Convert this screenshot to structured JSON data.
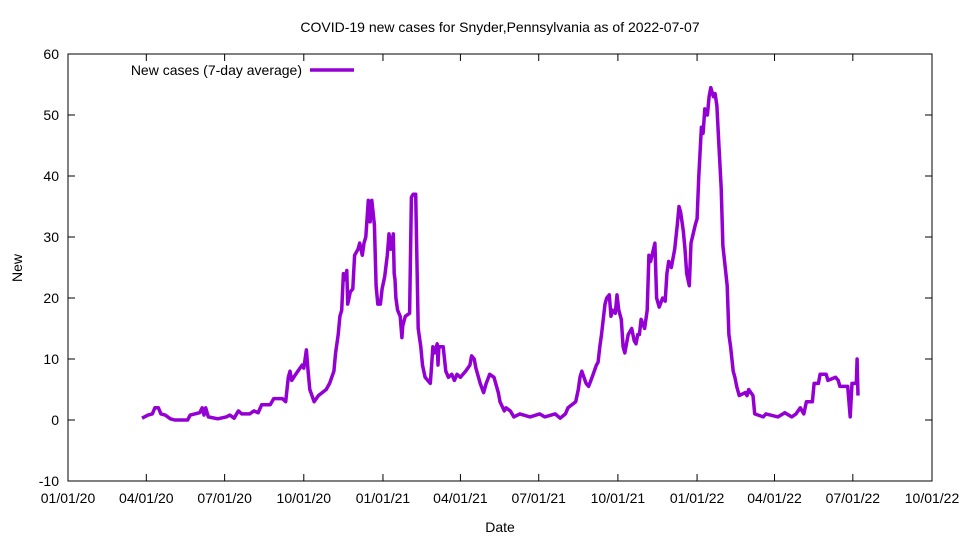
{
  "chart_data": {
    "type": "line",
    "title": "COVID-19 new cases for Snyder,Pennsylvania as of 2022-07-07",
    "xlabel": "Date",
    "ylabel": "New",
    "xlim": [
      "2020-01-01",
      "2022-10-01"
    ],
    "ylim": [
      -10,
      60
    ],
    "yticks": [
      -10,
      0,
      10,
      20,
      30,
      40,
      50,
      60
    ],
    "xticks": [
      {
        "date": "2020-01-01",
        "label": "01/01/20"
      },
      {
        "date": "2020-04-01",
        "label": "04/01/20"
      },
      {
        "date": "2020-07-01",
        "label": "07/01/20"
      },
      {
        "date": "2020-10-01",
        "label": "10/01/20"
      },
      {
        "date": "2021-01-01",
        "label": "01/01/21"
      },
      {
        "date": "2021-04-01",
        "label": "04/01/21"
      },
      {
        "date": "2021-07-01",
        "label": "07/01/21"
      },
      {
        "date": "2021-10-01",
        "label": "10/01/21"
      },
      {
        "date": "2022-01-01",
        "label": "01/01/22"
      },
      {
        "date": "2022-04-01",
        "label": "04/01/22"
      },
      {
        "date": "2022-07-01",
        "label": "07/01/22"
      },
      {
        "date": "2022-10-01",
        "label": "10/01/22"
      }
    ],
    "grid": false,
    "legend_placement": "top-left",
    "series": [
      {
        "name": "New cases (7-day average)",
        "color": "#9400D3",
        "points": [
          [
            "2020-03-27",
            0.3
          ],
          [
            "2020-04-03",
            0.8
          ],
          [
            "2020-04-08",
            1
          ],
          [
            "2020-04-11",
            2
          ],
          [
            "2020-04-15",
            2
          ],
          [
            "2020-04-18",
            1
          ],
          [
            "2020-04-23",
            0.8
          ],
          [
            "2020-04-29",
            0.2
          ],
          [
            "2020-05-04",
            0
          ],
          [
            "2020-05-19",
            0
          ],
          [
            "2020-05-22",
            0.8
          ],
          [
            "2020-06-02",
            1.2
          ],
          [
            "2020-06-05",
            2
          ],
          [
            "2020-06-07",
            0.8
          ],
          [
            "2020-06-09",
            2
          ],
          [
            "2020-06-12",
            0.5
          ],
          [
            "2020-06-23",
            0.2
          ],
          [
            "2020-07-03",
            0.5
          ],
          [
            "2020-07-07",
            0.8
          ],
          [
            "2020-07-12",
            0.3
          ],
          [
            "2020-07-17",
            1.5
          ],
          [
            "2020-07-21",
            1
          ],
          [
            "2020-07-30",
            1
          ],
          [
            "2020-08-04",
            1.5
          ],
          [
            "2020-08-09",
            1.2
          ],
          [
            "2020-08-13",
            2.5
          ],
          [
            "2020-08-23",
            2.5
          ],
          [
            "2020-08-27",
            3.5
          ],
          [
            "2020-09-06",
            3.5
          ],
          [
            "2020-09-10",
            3
          ],
          [
            "2020-09-13",
            7
          ],
          [
            "2020-09-15",
            8
          ],
          [
            "2020-09-17",
            6.5
          ],
          [
            "2020-09-24",
            8
          ],
          [
            "2020-09-29",
            9
          ],
          [
            "2020-10-01",
            8.5
          ],
          [
            "2020-10-04",
            11.5
          ],
          [
            "2020-10-06",
            8
          ],
          [
            "2020-10-08",
            5
          ],
          [
            "2020-10-13",
            3
          ],
          [
            "2020-10-18",
            4
          ],
          [
            "2020-10-27",
            5
          ],
          [
            "2020-10-31",
            6
          ],
          [
            "2020-11-05",
            8
          ],
          [
            "2020-11-07",
            11
          ],
          [
            "2020-11-10",
            14
          ],
          [
            "2020-11-12",
            17
          ],
          [
            "2020-11-14",
            18
          ],
          [
            "2020-11-16",
            24
          ],
          [
            "2020-11-18",
            23
          ],
          [
            "2020-11-20",
            24.5
          ],
          [
            "2020-11-21",
            19
          ],
          [
            "2020-11-24",
            21
          ],
          [
            "2020-11-27",
            21.5
          ],
          [
            "2020-11-29",
            27
          ],
          [
            "2020-12-03",
            28
          ],
          [
            "2020-12-05",
            29
          ],
          [
            "2020-12-08",
            27
          ],
          [
            "2020-12-10",
            29
          ],
          [
            "2020-12-12",
            30
          ],
          [
            "2020-12-15",
            36
          ],
          [
            "2020-12-17",
            32.5
          ],
          [
            "2020-12-19",
            36
          ],
          [
            "2020-12-22",
            32
          ],
          [
            "2020-12-24",
            22
          ],
          [
            "2020-12-26",
            19
          ],
          [
            "2020-12-29",
            19
          ],
          [
            "2020-12-31",
            21.5
          ],
          [
            "2021-01-03",
            23.5
          ],
          [
            "2021-01-06",
            27
          ],
          [
            "2021-01-08",
            30.5
          ],
          [
            "2021-01-10",
            28
          ],
          [
            "2021-01-13",
            30.5
          ],
          [
            "2021-01-14",
            24
          ],
          [
            "2021-01-15",
            23
          ],
          [
            "2021-01-16",
            20
          ],
          [
            "2021-01-18",
            18
          ],
          [
            "2021-01-21",
            17
          ],
          [
            "2021-01-23",
            13.5
          ],
          [
            "2021-01-24",
            15.5
          ],
          [
            "2021-01-27",
            17
          ],
          [
            "2021-02-01",
            17.5
          ],
          [
            "2021-02-03",
            36.5
          ],
          [
            "2021-02-05",
            37
          ],
          [
            "2021-02-08",
            37
          ],
          [
            "2021-02-11",
            15
          ],
          [
            "2021-02-14",
            12
          ],
          [
            "2021-02-16",
            9
          ],
          [
            "2021-02-19",
            7
          ],
          [
            "2021-02-25",
            6
          ],
          [
            "2021-02-26",
            8
          ],
          [
            "2021-02-28",
            12
          ],
          [
            "2021-03-02",
            11
          ],
          [
            "2021-03-05",
            12.5
          ],
          [
            "2021-03-06",
            9
          ],
          [
            "2021-03-07",
            12
          ],
          [
            "2021-03-12",
            12
          ],
          [
            "2021-03-15",
            8
          ],
          [
            "2021-03-18",
            7
          ],
          [
            "2021-03-22",
            7.5
          ],
          [
            "2021-03-25",
            6.5
          ],
          [
            "2021-03-28",
            7.5
          ],
          [
            "2021-04-01",
            7
          ],
          [
            "2021-04-07",
            8
          ],
          [
            "2021-04-12",
            9
          ],
          [
            "2021-04-14",
            10.5
          ],
          [
            "2021-04-17",
            10
          ],
          [
            "2021-04-19",
            8.5
          ],
          [
            "2021-04-24",
            6
          ],
          [
            "2021-04-28",
            4.5
          ],
          [
            "2021-05-01",
            6
          ],
          [
            "2021-05-05",
            7.5
          ],
          [
            "2021-05-10",
            7
          ],
          [
            "2021-05-12",
            6
          ],
          [
            "2021-05-15",
            4.5
          ],
          [
            "2021-05-17",
            3
          ],
          [
            "2021-05-22",
            1.5
          ],
          [
            "2021-05-24",
            2
          ],
          [
            "2021-05-29",
            1.5
          ],
          [
            "2021-06-02",
            0.5
          ],
          [
            "2021-06-09",
            1
          ],
          [
            "2021-06-21",
            0.5
          ],
          [
            "2021-07-02",
            1
          ],
          [
            "2021-07-08",
            0.5
          ],
          [
            "2021-07-20",
            1
          ],
          [
            "2021-07-26",
            0.3
          ],
          [
            "2021-08-01",
            1
          ],
          [
            "2021-08-04",
            2
          ],
          [
            "2021-08-13",
            3
          ],
          [
            "2021-08-16",
            5
          ],
          [
            "2021-08-18",
            7
          ],
          [
            "2021-08-20",
            8
          ],
          [
            "2021-08-25",
            6
          ],
          [
            "2021-08-28",
            5.5
          ],
          [
            "2021-09-01",
            7
          ],
          [
            "2021-09-06",
            9
          ],
          [
            "2021-09-08",
            9.5
          ],
          [
            "2021-09-10",
            12
          ],
          [
            "2021-09-12",
            14
          ],
          [
            "2021-09-16",
            19
          ],
          [
            "2021-09-18",
            20
          ],
          [
            "2021-09-21",
            20.5
          ],
          [
            "2021-09-23",
            17
          ],
          [
            "2021-09-25",
            18
          ],
          [
            "2021-09-28",
            17.5
          ],
          [
            "2021-09-30",
            20.5
          ],
          [
            "2021-10-02",
            18
          ],
          [
            "2021-10-05",
            16.5
          ],
          [
            "2021-10-07",
            12
          ],
          [
            "2021-10-09",
            11
          ],
          [
            "2021-10-13",
            14
          ],
          [
            "2021-10-17",
            15
          ],
          [
            "2021-10-20",
            13
          ],
          [
            "2021-10-22",
            12.5
          ],
          [
            "2021-10-24",
            14
          ],
          [
            "2021-10-26",
            14
          ],
          [
            "2021-10-28",
            16.5
          ],
          [
            "2021-11-01",
            15
          ],
          [
            "2021-11-04",
            18
          ],
          [
            "2021-11-06",
            27
          ],
          [
            "2021-11-08",
            26
          ],
          [
            "2021-11-13",
            29
          ],
          [
            "2021-11-15",
            20
          ],
          [
            "2021-11-18",
            18.5
          ],
          [
            "2021-11-22",
            20
          ],
          [
            "2021-11-25",
            19.5
          ],
          [
            "2021-11-27",
            24
          ],
          [
            "2021-11-29",
            26
          ],
          [
            "2021-12-02",
            25
          ],
          [
            "2021-12-06",
            28
          ],
          [
            "2021-12-09",
            32
          ],
          [
            "2021-12-11",
            35
          ],
          [
            "2021-12-13",
            34
          ],
          [
            "2021-12-16",
            31
          ],
          [
            "2021-12-18",
            28
          ],
          [
            "2021-12-20",
            24
          ],
          [
            "2021-12-23",
            22
          ],
          [
            "2021-12-25",
            29
          ],
          [
            "2021-12-30",
            32
          ],
          [
            "2022-01-01",
            33
          ],
          [
            "2022-01-03",
            40
          ],
          [
            "2022-01-06",
            48
          ],
          [
            "2022-01-08",
            47
          ],
          [
            "2022-01-10",
            51
          ],
          [
            "2022-01-13",
            50
          ],
          [
            "2022-01-15",
            53
          ],
          [
            "2022-01-17",
            54.5
          ],
          [
            "2022-01-20",
            53
          ],
          [
            "2022-01-22",
            53.5
          ],
          [
            "2022-01-24",
            51.5
          ],
          [
            "2022-01-26",
            46
          ],
          [
            "2022-01-29",
            38
          ],
          [
            "2022-01-31",
            28.5
          ],
          [
            "2022-02-02",
            26
          ],
          [
            "2022-02-05",
            22
          ],
          [
            "2022-02-07",
            14
          ],
          [
            "2022-02-09",
            12
          ],
          [
            "2022-02-12",
            8
          ],
          [
            "2022-02-14",
            7
          ],
          [
            "2022-02-16",
            5.5
          ],
          [
            "2022-02-19",
            4
          ],
          [
            "2022-02-26",
            4.5
          ],
          [
            "2022-02-28",
            4
          ],
          [
            "2022-03-02",
            5
          ],
          [
            "2022-03-07",
            4
          ],
          [
            "2022-03-09",
            1
          ],
          [
            "2022-03-19",
            0.5
          ],
          [
            "2022-03-22",
            1
          ],
          [
            "2022-04-05",
            0.5
          ],
          [
            "2022-04-13",
            1.2
          ],
          [
            "2022-04-21",
            0.5
          ],
          [
            "2022-04-26",
            1
          ],
          [
            "2022-05-01",
            2
          ],
          [
            "2022-05-05",
            1
          ],
          [
            "2022-05-08",
            3
          ],
          [
            "2022-05-15",
            3
          ],
          [
            "2022-05-17",
            6
          ],
          [
            "2022-05-22",
            6
          ],
          [
            "2022-05-24",
            7.5
          ],
          [
            "2022-05-31",
            7.5
          ],
          [
            "2022-06-02",
            6.5
          ],
          [
            "2022-06-11",
            7
          ],
          [
            "2022-06-14",
            6.5
          ],
          [
            "2022-06-16",
            5.5
          ],
          [
            "2022-06-25",
            5.5
          ],
          [
            "2022-06-28",
            0.5
          ],
          [
            "2022-06-30",
            6
          ],
          [
            "2022-07-05",
            6
          ],
          [
            "2022-07-06",
            10
          ],
          [
            "2022-07-07",
            4
          ]
        ]
      }
    ]
  }
}
